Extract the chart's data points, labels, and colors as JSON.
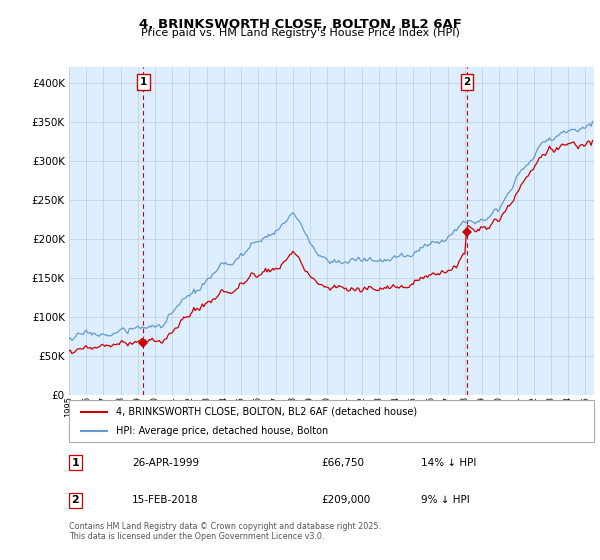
{
  "title_line1": "4, BRINKSWORTH CLOSE, BOLTON, BL2 6AF",
  "title_line2": "Price paid vs. HM Land Registry's House Price Index (HPI)",
  "legend_label1": "4, BRINKSWORTH CLOSE, BOLTON, BL2 6AF (detached house)",
  "legend_label2": "HPI: Average price, detached house, Bolton",
  "annotation1_num": "1",
  "annotation1_date": "26-APR-1999",
  "annotation1_price": "£66,750",
  "annotation1_hpi": "14% ↓ HPI",
  "annotation2_num": "2",
  "annotation2_date": "15-FEB-2018",
  "annotation2_price": "£209,000",
  "annotation2_hpi": "9% ↓ HPI",
  "footer": "Contains HM Land Registry data © Crown copyright and database right 2025.\nThis data is licensed under the Open Government Licence v3.0.",
  "purchase1_year": 1999.32,
  "purchase1_price": 66750,
  "purchase2_year": 2018.12,
  "purchase2_price": 209000,
  "ylim_max": 420000,
  "ylabel_ticks": [
    0,
    50000,
    100000,
    150000,
    200000,
    250000,
    300000,
    350000,
    400000
  ],
  "red_color": "#cc0000",
  "blue_color": "#6699cc",
  "vline_color": "#cc0000",
  "grid_color": "#bbccdd",
  "bg_color": "#ddeeff",
  "background_color": "#ffffff"
}
